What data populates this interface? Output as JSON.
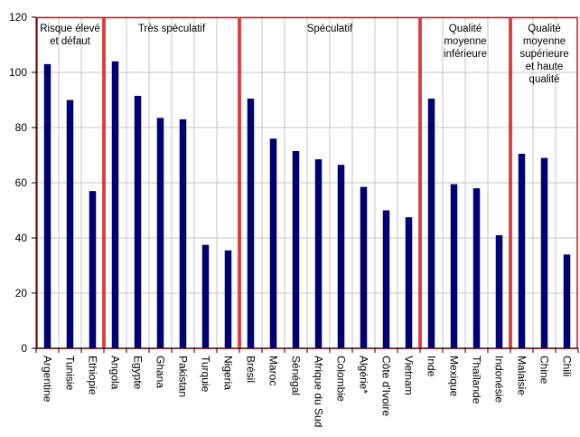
{
  "chart_data": {
    "type": "bar",
    "title": "",
    "xlabel": "",
    "ylabel": "",
    "ylim": [
      0,
      120
    ],
    "yticks": [
      0,
      20,
      40,
      60,
      80,
      100,
      120
    ],
    "grid": true,
    "bar_color": "#00006e",
    "group_border_color": "#d42020",
    "categories": [
      "Argentine",
      "Tunisie",
      "Ethiopie",
      "Angola",
      "Egypte",
      "Ghana",
      "Pakistan",
      "Turquie",
      "Nigeria",
      "Brésil",
      "Maroc",
      "Sénégal",
      "Afrique du Sud",
      "Colombie",
      "Algérie*",
      "Côte d'Ivoire",
      "Vietnam",
      "Inde",
      "Mexique",
      "Thaïlande",
      "Indonésie",
      "Malaisie",
      "Chine",
      "Chili"
    ],
    "values": [
      103,
      90,
      57,
      104,
      91.5,
      83.5,
      83,
      37.5,
      35.5,
      90.5,
      76,
      71.5,
      68.5,
      66.5,
      58.5,
      50,
      47.5,
      90.5,
      59.5,
      58,
      41,
      70.5,
      69,
      34
    ],
    "groups": [
      {
        "label": "Risque élevé et défaut",
        "lines": [
          "Risque élevé",
          "et défaut"
        ],
        "start": 0,
        "end": 2
      },
      {
        "label": "Très spéculatif",
        "lines": [
          "Très spéculatif"
        ],
        "start": 3,
        "end": 8
      },
      {
        "label": "Spéculatif",
        "lines": [
          "Spéculatif"
        ],
        "start": 9,
        "end": 16
      },
      {
        "label": "Qualité moyenne inférieure",
        "lines": [
          "Qualité",
          "moyenne",
          "inférieure"
        ],
        "start": 17,
        "end": 20
      },
      {
        "label": "Qualité moyenne supérieure et haute qualité",
        "lines": [
          "Qualité",
          "moyenne",
          "supérieure",
          "et haute",
          "qualité"
        ],
        "start": 21,
        "end": 23
      }
    ]
  }
}
